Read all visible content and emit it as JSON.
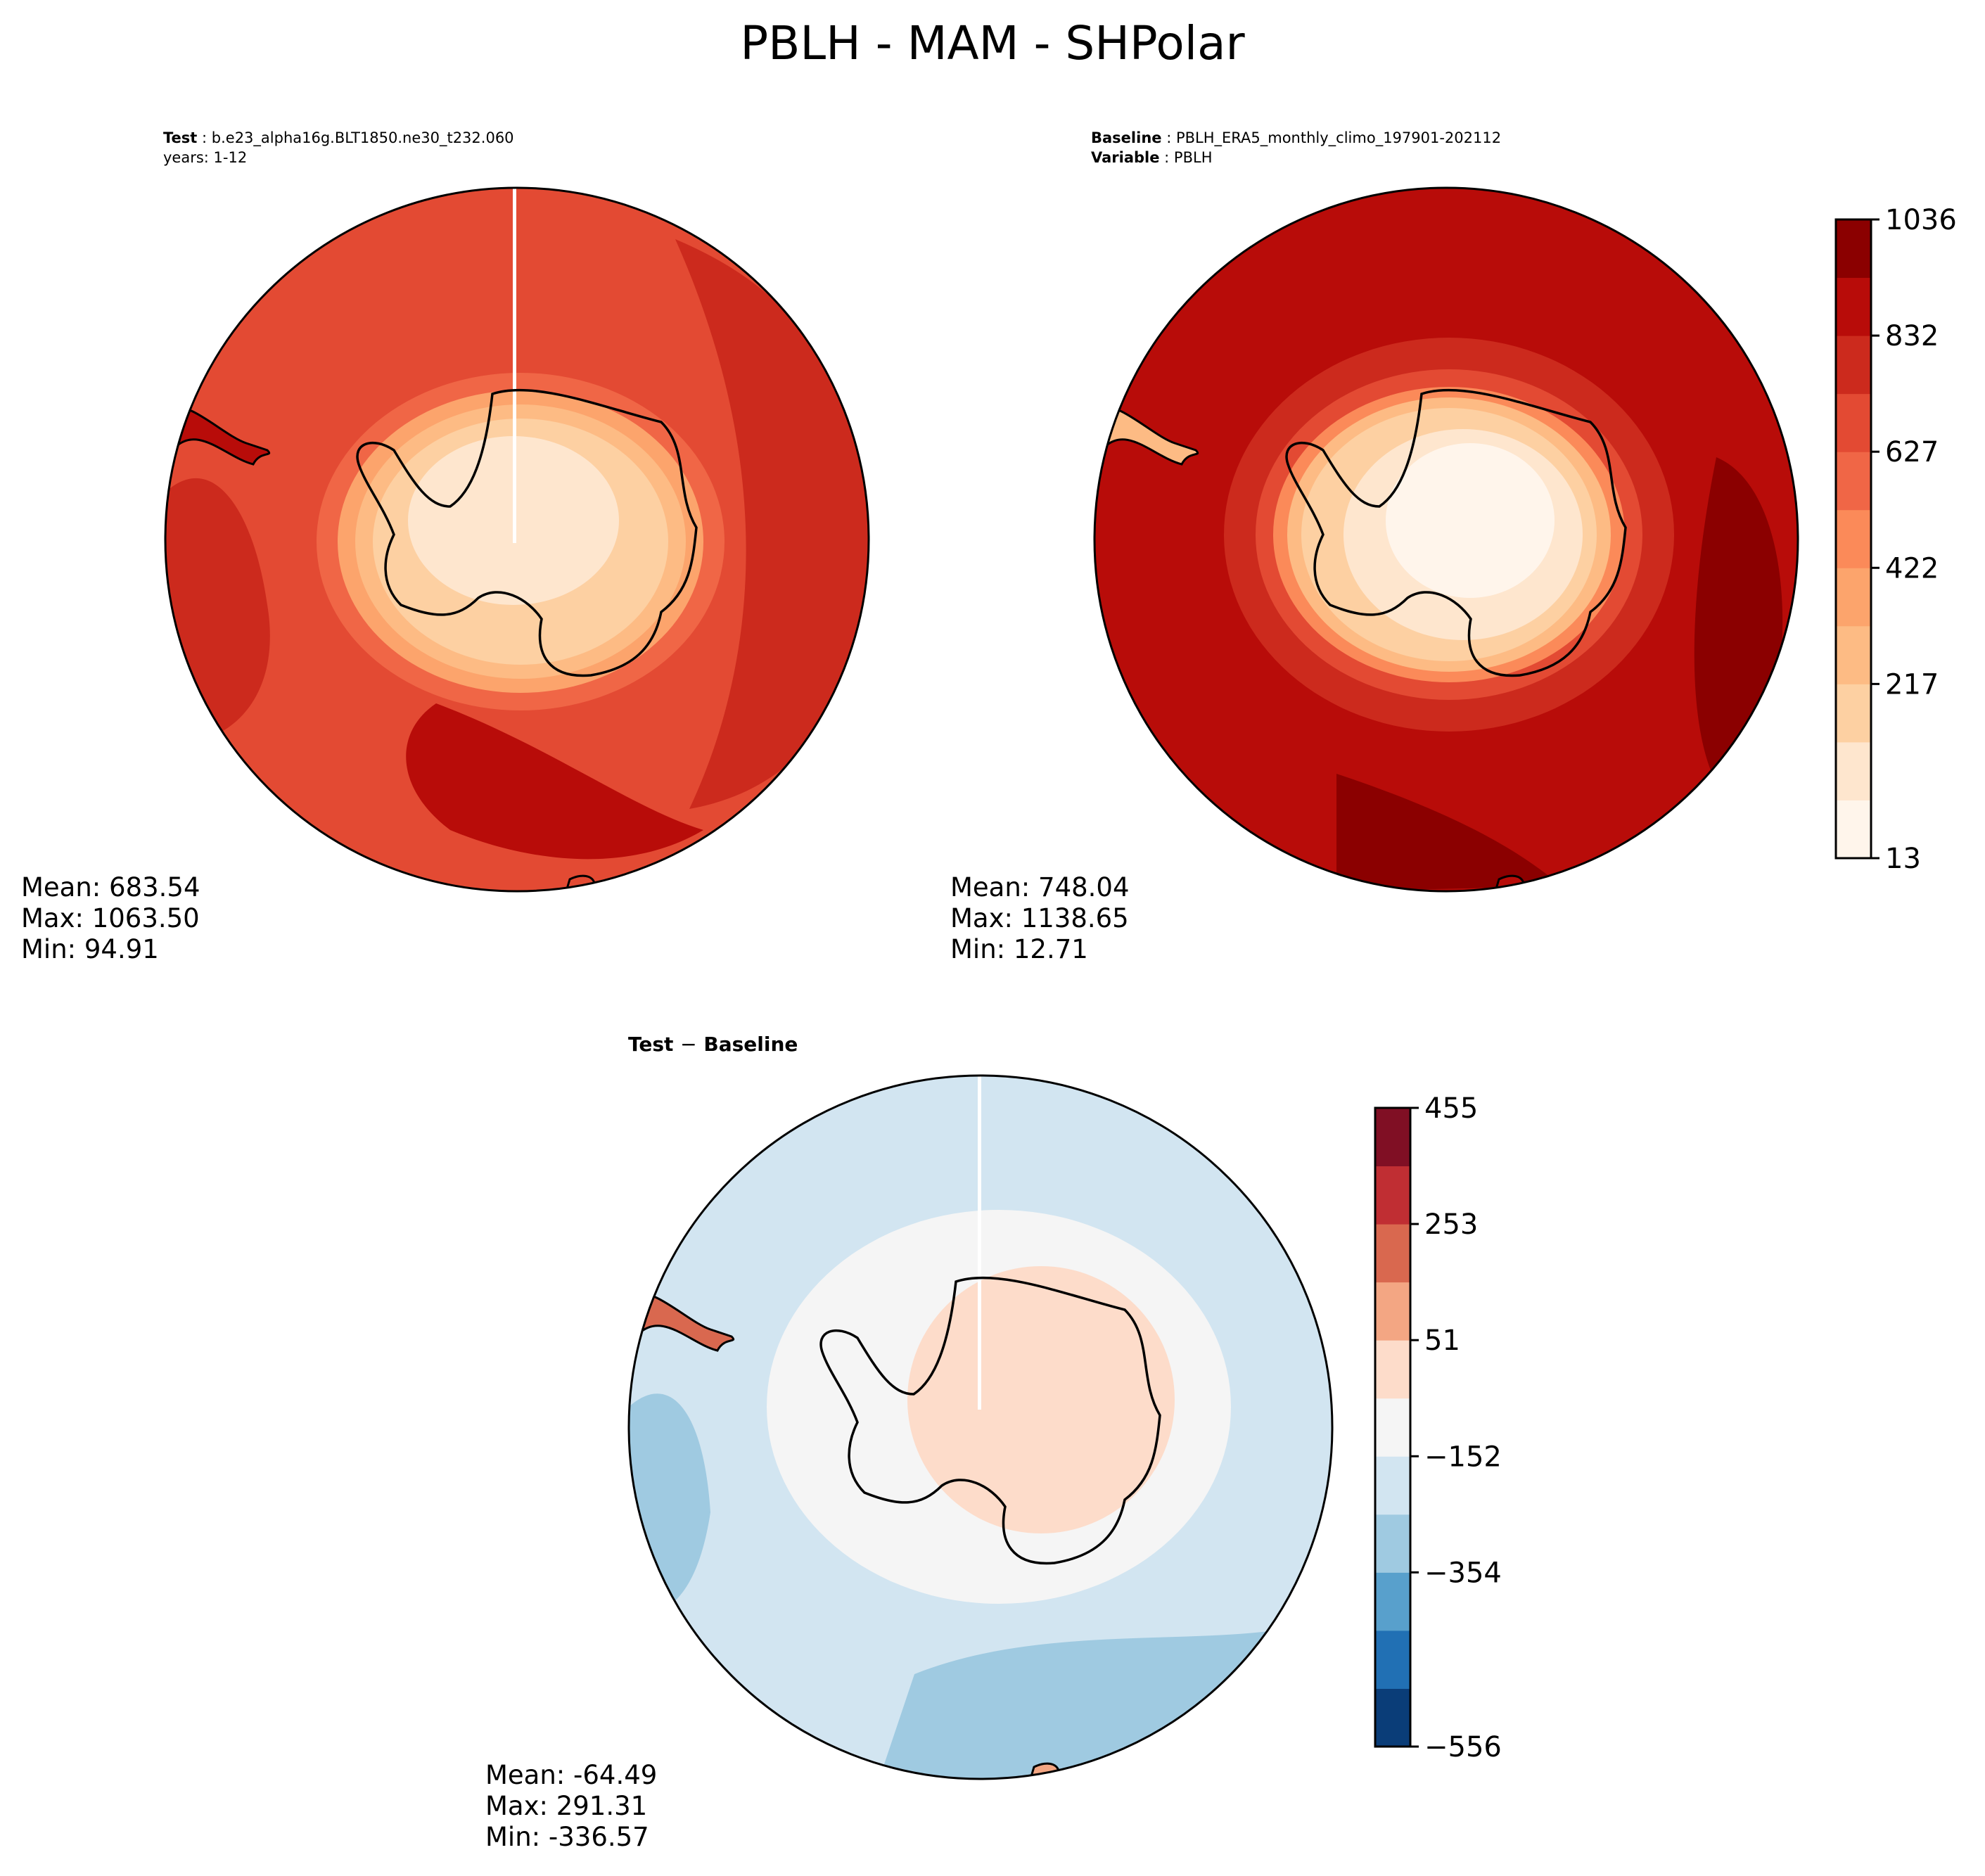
{
  "title": "PBLH - MAM - SHPolar",
  "panels": {
    "test": {
      "label_key": "Test",
      "label_value": "b.e23_alpha16g.BLT1850.ne30_t232.060",
      "line2": "years: 1-12",
      "stats": [
        "Mean: 683.54",
        "Max: 1063.50",
        "Min: 94.91"
      ]
    },
    "baseline": {
      "label_key": "Baseline",
      "label_value": "PBLH_ERA5_monthly_climo_197901-202112",
      "line2_key": "Variable",
      "line2_value": "PBLH",
      "stats": [
        "Mean: 748.04",
        "Max: 1138.65",
        "Min: 12.71"
      ]
    },
    "diff": {
      "title_a": "Test",
      "title_sep": "−",
      "title_b": "Baseline",
      "stats": [
        "Mean: -64.49",
        "Max: 291.31",
        "Min: -336.57"
      ]
    }
  },
  "colorbars": {
    "main": {
      "ticks": [
        "1036",
        "832",
        "627",
        "422",
        "217",
        "13"
      ],
      "colors": [
        "#fff5eb",
        "#fee6ce",
        "#fdd0a2",
        "#fdbb84",
        "#fca46c",
        "#fb8a59",
        "#f06646",
        "#e34a33",
        "#cc2a1d",
        "#b80c09",
        "#8b0000"
      ]
    },
    "diff": {
      "ticks": [
        "455",
        "253",
        "51",
        "−152",
        "−354",
        "−556"
      ],
      "colors": [
        "#0a3d78",
        "#2170b4",
        "#58a0cc",
        "#9fcae1",
        "#d2e5f1",
        "#f5f5f5",
        "#fddcca",
        "#f3a683",
        "#d9684f",
        "#c02e33",
        "#800f24"
      ]
    }
  },
  "map_colors": {
    "ocean_main": "#e34a33",
    "ocean_deep": "#cc2a1d",
    "base_ocean": "#cc2a1d",
    "base_deep": "#b80c09",
    "diff_ocean": "#d2e5f1",
    "diff_deep": "#9fcae1",
    "diff_land": "#fddcca"
  }
}
